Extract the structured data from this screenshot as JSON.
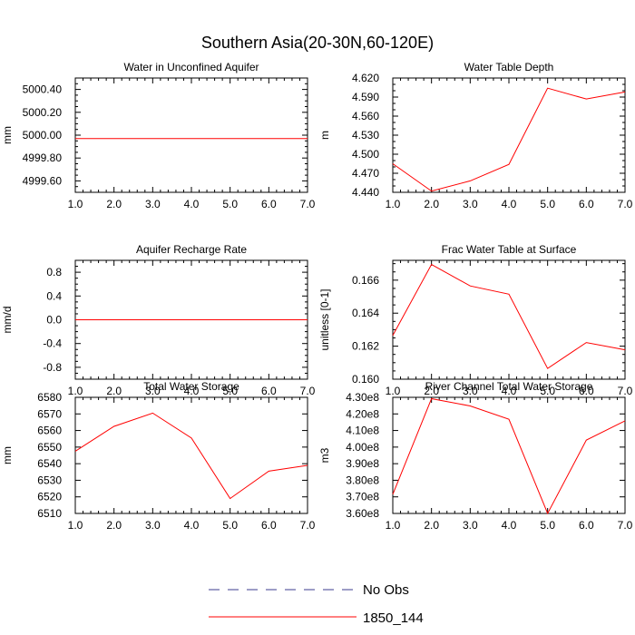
{
  "title": "Southern Asia(20-30N,60-120E)",
  "colors": {
    "series": "#ff0000",
    "axis": "#000000",
    "no_obs": "#3b3b8f"
  },
  "legend": {
    "entries": [
      {
        "label": "No Obs",
        "style": "dashed"
      },
      {
        "label": "1850_144",
        "style": "solid"
      }
    ]
  },
  "chart_data": [
    {
      "type": "line",
      "title": "Water in Unconfined Aquifer",
      "ylabel": "mm",
      "xlim": [
        1,
        7
      ],
      "ylim": [
        4999.5,
        5000.5
      ],
      "xticks": [
        1,
        2,
        3,
        4,
        5,
        6,
        7
      ],
      "xtick_labels": [
        "1.0",
        "2.0",
        "3.0",
        "4.0",
        "5.0",
        "6.0",
        "7.0"
      ],
      "yticks": [
        4999.6,
        4999.8,
        5000.0,
        5000.2,
        5000.4
      ],
      "ytick_labels": [
        "4999.60",
        "4999.80",
        "5000.00",
        "5000.20",
        "5000.40"
      ],
      "yminor": 4,
      "series": [
        {
          "name": "1850_144",
          "x": [
            1,
            2,
            3,
            4,
            5,
            6,
            7
          ],
          "values": [
            4999.97,
            4999.97,
            4999.97,
            4999.97,
            4999.97,
            4999.97,
            4999.97
          ]
        }
      ]
    },
    {
      "type": "line",
      "title": "Water Table Depth",
      "ylabel": "m",
      "xlim": [
        1,
        7
      ],
      "ylim": [
        4.44,
        4.62
      ],
      "xticks": [
        1,
        2,
        3,
        4,
        5,
        6,
        7
      ],
      "xtick_labels": [
        "1.0",
        "2.0",
        "3.0",
        "4.0",
        "5.0",
        "6.0",
        "7.0"
      ],
      "yticks": [
        4.44,
        4.47,
        4.5,
        4.53,
        4.56,
        4.59,
        4.62
      ],
      "ytick_labels": [
        "4.440",
        "4.470",
        "4.500",
        "4.530",
        "4.560",
        "4.590",
        "4.620"
      ],
      "yminor": 3,
      "series": [
        {
          "name": "1850_144",
          "x": [
            1,
            2,
            3,
            4,
            5,
            6,
            7
          ],
          "values": [
            4.485,
            4.442,
            4.458,
            4.484,
            4.604,
            4.587,
            4.598
          ]
        }
      ]
    },
    {
      "type": "line",
      "title": "Aquifer Recharge Rate",
      "ylabel": "mm/d",
      "xlim": [
        1,
        7
      ],
      "ylim": [
        -1,
        1
      ],
      "xticks": [
        1,
        2,
        3,
        4,
        5,
        6,
        7
      ],
      "xtick_labels": [
        "1.0",
        "2.0",
        "3.0",
        "4.0",
        "5.0",
        "6.0",
        "7.0"
      ],
      "yticks": [
        -0.8,
        -0.4,
        0,
        0.4,
        0.8
      ],
      "ytick_labels": [
        "-0.8",
        "-0.4",
        "0.0",
        "0.4",
        "0.8"
      ],
      "yminor": 4,
      "series": [
        {
          "name": "1850_144",
          "x": [
            1,
            2,
            3,
            4,
            5,
            6,
            7
          ],
          "values": [
            0,
            0,
            0,
            0,
            0,
            0,
            0
          ]
        }
      ]
    },
    {
      "type": "line",
      "title": "Frac Water Table at Surface",
      "ylabel": "unitless [0-1]",
      "xlim": [
        1,
        7
      ],
      "ylim": [
        0.16,
        0.1672
      ],
      "xticks": [
        1,
        2,
        3,
        4,
        5,
        6,
        7
      ],
      "xtick_labels": [
        "1.0",
        "2.0",
        "3.0",
        "4.0",
        "5.0",
        "6.0",
        "7.0"
      ],
      "yticks": [
        0.16,
        0.162,
        0.164,
        0.166
      ],
      "ytick_labels": [
        "0.160",
        "0.162",
        "0.164",
        "0.166"
      ],
      "yminor": 4,
      "series": [
        {
          "name": "1850_144",
          "x": [
            1,
            2,
            3,
            4,
            5,
            6,
            7
          ],
          "values": [
            0.16265,
            0.16695,
            0.16565,
            0.16515,
            0.16065,
            0.16222,
            0.16178
          ]
        }
      ]
    },
    {
      "type": "line",
      "title": "Total Water Storage",
      "ylabel": "mm",
      "xlim": [
        1,
        7
      ],
      "ylim": [
        6510,
        6580
      ],
      "xticks": [
        1,
        2,
        3,
        4,
        5,
        6,
        7
      ],
      "xtick_labels": [
        "1.0",
        "2.0",
        "3.0",
        "4.0",
        "5.0",
        "6.0",
        "7.0"
      ],
      "yticks": [
        6510,
        6520,
        6530,
        6540,
        6550,
        6560,
        6570,
        6580
      ],
      "ytick_labels": [
        "6510",
        "6520",
        "6530",
        "6540",
        "6550",
        "6560",
        "6570",
        "6580"
      ],
      "yminor": 1,
      "series": [
        {
          "name": "1850_144",
          "x": [
            1,
            2,
            3,
            4,
            5,
            6,
            7
          ],
          "values": [
            6547.5,
            6562.5,
            6570.5,
            6555.5,
            6519,
            6535.5,
            6539
          ]
        }
      ]
    },
    {
      "type": "line",
      "title": "River Channel Total Water Storage",
      "ylabel": "m3",
      "xlim": [
        1,
        7
      ],
      "ylim": [
        3.6,
        4.3
      ],
      "xticks": [
        1,
        2,
        3,
        4,
        5,
        6,
        7
      ],
      "xtick_labels": [
        "1.0",
        "2.0",
        "3.0",
        "4.0",
        "5.0",
        "6.0",
        "7.0"
      ],
      "yticks": [
        3.6,
        3.7,
        3.8,
        3.9,
        4.0,
        4.1,
        4.2,
        4.3
      ],
      "ytick_labels": [
        "3.60e8",
        "3.70e8",
        "3.80e8",
        "3.90e8",
        "4.00e8",
        "4.10e8",
        "4.20e8",
        "4.30e8"
      ],
      "yminor": 1,
      "series": [
        {
          "name": "1850_144",
          "x": [
            1,
            2,
            3,
            4,
            5,
            6,
            7
          ],
          "values": [
            3.715,
            4.292,
            4.248,
            4.168,
            3.6,
            4.042,
            4.158
          ]
        }
      ]
    }
  ]
}
